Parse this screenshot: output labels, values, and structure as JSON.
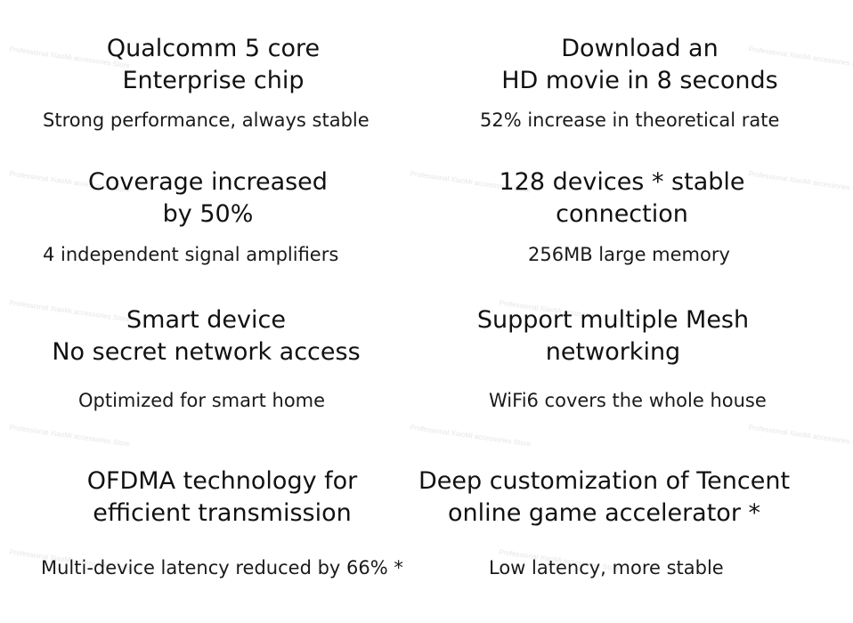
{
  "watermark": "Professional XiaoMi accessories Store",
  "features": [
    {
      "title_lines": [
        "Qualcomm 5 core",
        "Enterprise chip"
      ],
      "subtitle": "Strong performance, always stable"
    },
    {
      "title_lines": [
        "Download an",
        "HD movie in 8 seconds"
      ],
      "subtitle": "52% increase in theoretical rate"
    },
    {
      "title_lines": [
        "Coverage increased",
        "by 50%"
      ],
      "subtitle": "4 independent signal amplifiers"
    },
    {
      "title_lines": [
        "128 devices * stable",
        "connection"
      ],
      "subtitle": "256MB large memory"
    },
    {
      "title_lines": [
        "Smart device",
        "No secret network access"
      ],
      "subtitle": "Optimized for smart home"
    },
    {
      "title_lines": [
        "Support multiple Mesh",
        "networking"
      ],
      "subtitle": "WiFi6 covers the whole house"
    },
    {
      "title_lines": [
        "OFDMA technology for",
        "efficient transmission"
      ],
      "subtitle": "Multi-device latency reduced by 66% *"
    },
    {
      "title_lines": [
        "Deep customization of Tencent",
        "online game accelerator *"
      ],
      "subtitle": "Low latency, more stable"
    }
  ]
}
